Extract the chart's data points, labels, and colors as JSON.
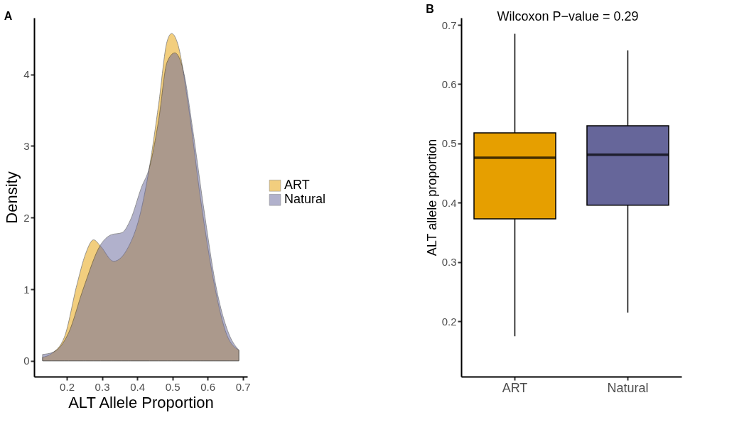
{
  "chart_data": [
    {
      "type": "area",
      "title": "A",
      "xlabel": "ALT Allele Proportion",
      "ylabel": "Density",
      "xlim": [
        0.107,
        0.713
      ],
      "xticks": [
        0.2,
        0.3,
        0.4,
        0.5,
        0.6,
        0.7
      ],
      "ylim": [
        -0.22,
        4.79
      ],
      "yticks": [
        0,
        1,
        2,
        3,
        4
      ],
      "grid": false,
      "legend": "right",
      "series": [
        {
          "name": "ART",
          "color": "#e69f00",
          "x": [
            0.131,
            0.156,
            0.193,
            0.229,
            0.253,
            0.276,
            0.296,
            0.333,
            0.375,
            0.406,
            0.435,
            0.461,
            0.485,
            0.498,
            0.515,
            0.545,
            0.581,
            0.618,
            0.655,
            0.689
          ],
          "values": [
            0.05,
            0.1,
            0.33,
            1.07,
            1.49,
            1.69,
            1.6,
            1.39,
            1.59,
            2.0,
            2.71,
            3.58,
            4.46,
            4.57,
            4.43,
            3.58,
            2.23,
            1.1,
            0.36,
            0.15
          ]
        },
        {
          "name": "Natural",
          "color": "#66669a",
          "x": [
            0.131,
            0.161,
            0.205,
            0.247,
            0.296,
            0.326,
            0.357,
            0.381,
            0.412,
            0.435,
            0.461,
            0.485,
            0.507,
            0.533,
            0.557,
            0.588,
            0.624,
            0.662,
            0.689
          ],
          "values": [
            0.09,
            0.12,
            0.39,
            1.01,
            1.62,
            1.76,
            1.79,
            1.97,
            2.42,
            2.7,
            3.36,
            4.17,
            4.3,
            4.01,
            3.26,
            2.17,
            1.04,
            0.36,
            0.15
          ]
        }
      ]
    },
    {
      "type": "box",
      "title": "B",
      "ylabel": "ALT allele proportion",
      "categories": [
        "ART",
        "Natural"
      ],
      "colors": [
        "#e69f00",
        "#66669a"
      ],
      "ylim": [
        0.107,
        0.712
      ],
      "yticks": [
        0.2,
        0.3,
        0.4,
        0.5,
        0.6,
        0.7
      ],
      "grid": false,
      "legend": false,
      "annotations": [
        "Wilcoxon P−value = 0.29"
      ],
      "boxes": [
        {
          "low": 0.175,
          "q1": 0.373,
          "median": 0.476,
          "q3": 0.518,
          "high": 0.685
        },
        {
          "low": 0.215,
          "q1": 0.396,
          "median": 0.481,
          "q3": 0.53,
          "high": 0.657
        }
      ]
    }
  ]
}
